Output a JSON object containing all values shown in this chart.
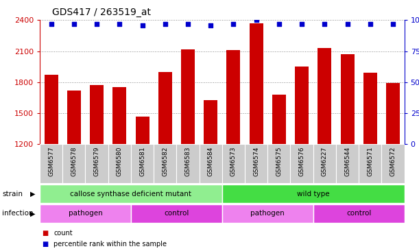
{
  "title": "GDS417 / 263519_at",
  "samples": [
    "GSM6577",
    "GSM6578",
    "GSM6579",
    "GSM6580",
    "GSM6581",
    "GSM6582",
    "GSM6583",
    "GSM6584",
    "GSM6573",
    "GSM6574",
    "GSM6575",
    "GSM6576",
    "GSM6227",
    "GSM6544",
    "GSM6571",
    "GSM6572"
  ],
  "counts": [
    1870,
    1720,
    1770,
    1750,
    1465,
    1900,
    2120,
    1630,
    2110,
    2370,
    1680,
    1950,
    2130,
    2070,
    1895,
    1790
  ],
  "percentiles": [
    97,
    97,
    97,
    97,
    96,
    97,
    97,
    96,
    97,
    100,
    97,
    97,
    97,
    97,
    97,
    97
  ],
  "ylim_left": [
    1200,
    2400
  ],
  "ylim_right": [
    0,
    100
  ],
  "yticks_left": [
    1200,
    1500,
    1800,
    2100,
    2400
  ],
  "yticks_right": [
    0,
    25,
    50,
    75,
    100
  ],
  "bar_color": "#cc0000",
  "dot_color": "#0000cc",
  "strain_labels": [
    {
      "text": "callose synthase deficient mutant",
      "start": 0,
      "end": 8,
      "color": "#90ee90"
    },
    {
      "text": "wild type",
      "start": 8,
      "end": 16,
      "color": "#44dd44"
    }
  ],
  "infection_colors_alt": [
    "#ee82ee",
    "#cc44cc"
  ],
  "infection_labels": [
    {
      "text": "pathogen",
      "start": 0,
      "end": 4,
      "color": "#ee82ee"
    },
    {
      "text": "control",
      "start": 4,
      "end": 8,
      "color": "#dd44dd"
    },
    {
      "text": "pathogen",
      "start": 8,
      "end": 12,
      "color": "#ee82ee"
    },
    {
      "text": "control",
      "start": 12,
      "end": 16,
      "color": "#dd44dd"
    }
  ],
  "legend_count_color": "#cc0000",
  "legend_dot_color": "#0000cc",
  "background_color": "#ffffff",
  "plot_bg_color": "#ffffff",
  "tick_color_left": "#cc0000",
  "tick_color_right": "#0000cc",
  "grid_color": "#888888",
  "xticklabel_bg": "#cccccc"
}
